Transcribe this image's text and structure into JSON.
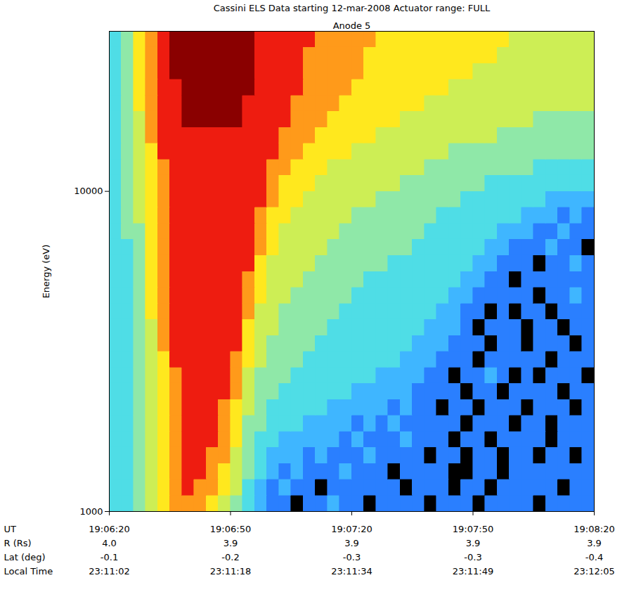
{
  "chart_data": {
    "type": "heatmap",
    "title": "Cassini ELS Data starting 12-mar-2008 Actuator range: FULL",
    "subtitle": "Anode 5",
    "x_label": "UT",
    "y_label": "Energy (eV)",
    "log": "y",
    "xlim": [
      "19:06:20",
      "19:08:20"
    ],
    "xticks": [
      "19:06:20",
      "19:06:50",
      "19:07:20",
      "19:07:50",
      "19:08:20"
    ],
    "ylim": [
      1000,
      31623
    ],
    "yticks": [
      1000,
      10000
    ],
    "ephemeris": [
      {
        "label": "R (Rs)",
        "values": [
          {
            "value": 4.0,
            "label": "4.0"
          },
          3.9,
          3.9,
          3.9,
          3.9
        ]
      },
      {
        "label": "Lat (deg)",
        "values": [
          -0.1,
          -0.2,
          -0.3,
          -0.3,
          -0.4
        ]
      },
      {
        "label": "Local Time",
        "values": [
          "23:11:02",
          "23:11:18",
          "23:11:34",
          "23:11:49",
          "23:12:05"
        ]
      }
    ],
    "x_edges": [
      "19:06:20",
      "19:06:23",
      "19:06:26",
      "19:06:29",
      "19:06:32",
      "19:06:35",
      "19:06:38",
      "19:06:41",
      "19:06:44",
      "19:06:47",
      "19:06:50",
      "19:06:53",
      "19:06:56",
      "19:06:59",
      "19:07:02",
      "19:07:05",
      "19:07:08",
      "19:07:11",
      "19:07:14",
      "19:07:17",
      "19:07:20",
      "19:07:23",
      "19:07:26",
      "19:07:29",
      "19:07:32",
      "19:07:35",
      "19:07:38",
      "19:07:41",
      "19:07:44",
      "19:07:47",
      "19:07:50",
      "19:07:53",
      "19:07:56",
      "19:07:59",
      "19:08:02",
      "19:08:05",
      "19:08:08",
      "19:08:11",
      "19:08:14",
      "19:08:17",
      "19:08:20"
    ],
    "y_edges": [
      1000,
      1122,
      1259,
      1413,
      1585,
      1778,
      1995,
      2239,
      2512,
      2818,
      3162,
      3548,
      3981,
      4467,
      5012,
      5623,
      6310,
      7079,
      7943,
      8913,
      10000,
      11220,
      12589,
      14125,
      15849,
      17783,
      19953,
      22387,
      25119,
      28184,
      31623
    ],
    "z_range": [
      0,
      9
    ],
    "z": [
      [
        3,
        3,
        4,
        5,
        6,
        7,
        7,
        7,
        6,
        5,
        4,
        3,
        2,
        1,
        1,
        0,
        1,
        1,
        2,
        1,
        1,
        0,
        1,
        1,
        1,
        1,
        0,
        1,
        1,
        1,
        0,
        1,
        1,
        1,
        1,
        0,
        1,
        1,
        1,
        1
      ],
      [
        3,
        3,
        4,
        5,
        6,
        7,
        8,
        7,
        7,
        6,
        5,
        3,
        2,
        1,
        2,
        1,
        1,
        0,
        1,
        1,
        1,
        1,
        1,
        1,
        0,
        1,
        1,
        1,
        0,
        1,
        1,
        0,
        1,
        1,
        1,
        1,
        1,
        0,
        1,
        1
      ],
      [
        3,
        3,
        4,
        5,
        6,
        7,
        8,
        8,
        7,
        6,
        5,
        4,
        3,
        2,
        1,
        2,
        1,
        1,
        1,
        2,
        1,
        1,
        1,
        0,
        1,
        1,
        1,
        1,
        0,
        0,
        1,
        1,
        0,
        1,
        1,
        1,
        1,
        1,
        1,
        1
      ],
      [
        3,
        3,
        4,
        5,
        6,
        7,
        8,
        8,
        7,
        7,
        5,
        4,
        3,
        2,
        2,
        2,
        1,
        2,
        1,
        1,
        1,
        2,
        1,
        1,
        1,
        1,
        0,
        1,
        1,
        0,
        1,
        1,
        0,
        1,
        1,
        0,
        1,
        1,
        0,
        1
      ],
      [
        3,
        3,
        4,
        5,
        6,
        7,
        8,
        8,
        8,
        7,
        6,
        4,
        3,
        3,
        2,
        2,
        2,
        2,
        2,
        1,
        2,
        1,
        1,
        1,
        2,
        1,
        1,
        1,
        0,
        1,
        1,
        0,
        1,
        1,
        1,
        1,
        0,
        1,
        1,
        1
      ],
      [
        3,
        3,
        4,
        5,
        6,
        7,
        8,
        8,
        8,
        7,
        6,
        4,
        4,
        3,
        3,
        3,
        2,
        2,
        2,
        2,
        1,
        2,
        1,
        2,
        1,
        1,
        1,
        1,
        1,
        0,
        1,
        1,
        1,
        0,
        1,
        1,
        0,
        1,
        1,
        1
      ],
      [
        3,
        3,
        4,
        5,
        6,
        7,
        8,
        8,
        8,
        7,
        6,
        5,
        4,
        3,
        3,
        3,
        3,
        3,
        2,
        2,
        2,
        2,
        2,
        1,
        2,
        1,
        1,
        0,
        1,
        1,
        0,
        1,
        1,
        1,
        0,
        1,
        1,
        1,
        0,
        1
      ],
      [
        3,
        3,
        4,
        5,
        6,
        7,
        8,
        8,
        8,
        8,
        7,
        5,
        4,
        4,
        3,
        3,
        3,
        3,
        3,
        3,
        2,
        2,
        2,
        2,
        2,
        1,
        1,
        1,
        1,
        0,
        1,
        1,
        0,
        1,
        1,
        1,
        1,
        0,
        1,
        1
      ],
      [
        3,
        3,
        4,
        5,
        6,
        7,
        8,
        8,
        8,
        8,
        7,
        5,
        4,
        4,
        4,
        3,
        3,
        3,
        3,
        3,
        3,
        3,
        2,
        2,
        2,
        2,
        1,
        1,
        0,
        1,
        1,
        2,
        1,
        0,
        1,
        0,
        1,
        1,
        1,
        0
      ],
      [
        3,
        3,
        4,
        5,
        6,
        8,
        8,
        8,
        8,
        8,
        7,
        6,
        5,
        4,
        4,
        4,
        3,
        3,
        3,
        3,
        3,
        3,
        3,
        3,
        2,
        2,
        2,
        1,
        1,
        1,
        0,
        1,
        1,
        1,
        1,
        1,
        0,
        1,
        1,
        1
      ],
      [
        3,
        3,
        4,
        5,
        7,
        8,
        8,
        8,
        8,
        8,
        8,
        6,
        5,
        4,
        4,
        4,
        4,
        3,
        3,
        3,
        3,
        3,
        3,
        3,
        3,
        2,
        2,
        2,
        1,
        1,
        1,
        0,
        1,
        1,
        0,
        1,
        1,
        1,
        0,
        1
      ],
      [
        3,
        3,
        4,
        5,
        7,
        8,
        8,
        8,
        8,
        8,
        8,
        6,
        5,
        5,
        4,
        4,
        4,
        4,
        3,
        3,
        3,
        3,
        3,
        3,
        3,
        3,
        2,
        2,
        2,
        1,
        0,
        1,
        1,
        1,
        0,
        1,
        1,
        0,
        1,
        1
      ],
      [
        3,
        3,
        4,
        6,
        7,
        8,
        8,
        8,
        8,
        8,
        8,
        7,
        5,
        5,
        4,
        4,
        4,
        4,
        4,
        3,
        3,
        3,
        3,
        3,
        3,
        3,
        3,
        2,
        2,
        1,
        1,
        0,
        1,
        0,
        1,
        1,
        0,
        1,
        1,
        1
      ],
      [
        3,
        3,
        4,
        6,
        7,
        8,
        8,
        8,
        8,
        8,
        8,
        7,
        6,
        5,
        5,
        4,
        4,
        4,
        4,
        4,
        3,
        3,
        3,
        3,
        3,
        3,
        3,
        3,
        2,
        2,
        1,
        1,
        1,
        1,
        1,
        0,
        1,
        1,
        2,
        1
      ],
      [
        3,
        3,
        4,
        6,
        7,
        8,
        8,
        8,
        8,
        8,
        8,
        7,
        6,
        5,
        5,
        5,
        4,
        4,
        4,
        4,
        4,
        3,
        3,
        3,
        3,
        3,
        3,
        3,
        3,
        2,
        2,
        1,
        1,
        0,
        1,
        1,
        1,
        1,
        1,
        1
      ],
      [
        3,
        3,
        4,
        6,
        7,
        8,
        8,
        8,
        8,
        8,
        8,
        8,
        6,
        5,
        5,
        5,
        5,
        4,
        4,
        4,
        4,
        4,
        4,
        3,
        3,
        3,
        3,
        3,
        3,
        3,
        2,
        2,
        1,
        1,
        1,
        0,
        1,
        1,
        2,
        1
      ],
      [
        3,
        3,
        4,
        6,
        7,
        8,
        8,
        8,
        8,
        8,
        8,
        8,
        7,
        6,
        5,
        5,
        5,
        5,
        4,
        4,
        4,
        4,
        4,
        4,
        4,
        3,
        3,
        3,
        3,
        3,
        3,
        2,
        2,
        1,
        1,
        1,
        2,
        1,
        1,
        0
      ],
      [
        3,
        4,
        4,
        6,
        7,
        8,
        8,
        8,
        8,
        8,
        8,
        8,
        7,
        6,
        5,
        5,
        5,
        5,
        5,
        4,
        4,
        4,
        4,
        4,
        4,
        4,
        3,
        3,
        3,
        3,
        3,
        3,
        2,
        2,
        2,
        1,
        1,
        2,
        1,
        1
      ],
      [
        3,
        4,
        5,
        6,
        7,
        8,
        8,
        8,
        8,
        8,
        8,
        8,
        7,
        6,
        6,
        5,
        5,
        5,
        5,
        5,
        4,
        4,
        4,
        4,
        4,
        4,
        4,
        3,
        3,
        3,
        3,
        3,
        3,
        3,
        2,
        2,
        2,
        1,
        2,
        1
      ],
      [
        3,
        4,
        5,
        6,
        7,
        8,
        8,
        8,
        8,
        8,
        8,
        8,
        8,
        7,
        6,
        6,
        5,
        5,
        5,
        5,
        5,
        5,
        4,
        4,
        4,
        4,
        4,
        4,
        4,
        3,
        3,
        3,
        3,
        3,
        3,
        3,
        2,
        2,
        2,
        2
      ],
      [
        3,
        4,
        5,
        6,
        7,
        8,
        8,
        8,
        8,
        8,
        8,
        8,
        8,
        7,
        6,
        6,
        6,
        5,
        5,
        5,
        5,
        5,
        5,
        5,
        4,
        4,
        4,
        4,
        4,
        4,
        4,
        3,
        3,
        3,
        3,
        3,
        3,
        3,
        3,
        3
      ],
      [
        3,
        4,
        5,
        6,
        7,
        8,
        8,
        8,
        8,
        8,
        8,
        8,
        8,
        7,
        7,
        6,
        6,
        6,
        5,
        5,
        5,
        5,
        5,
        5,
        5,
        5,
        4,
        4,
        4,
        4,
        4,
        4,
        4,
        4,
        4,
        3,
        3,
        3,
        3,
        3
      ],
      [
        3,
        4,
        5,
        6,
        8,
        8,
        8,
        8,
        8,
        8,
        8,
        8,
        8,
        8,
        7,
        7,
        6,
        6,
        6,
        6,
        5,
        5,
        5,
        5,
        5,
        5,
        5,
        5,
        4,
        4,
        4,
        4,
        4,
        4,
        4,
        4,
        4,
        4,
        4,
        4
      ],
      [
        3,
        4,
        5,
        7,
        8,
        8,
        8,
        8,
        8,
        8,
        8,
        8,
        8,
        8,
        7,
        7,
        7,
        6,
        6,
        6,
        6,
        6,
        5,
        5,
        5,
        5,
        5,
        5,
        5,
        5,
        5,
        5,
        4,
        4,
        4,
        4,
        4,
        4,
        4,
        4
      ],
      [
        3,
        4,
        5,
        7,
        8,
        8,
        9,
        9,
        9,
        9,
        9,
        8,
        8,
        8,
        8,
        7,
        7,
        7,
        6,
        6,
        6,
        6,
        6,
        6,
        5,
        5,
        5,
        5,
        5,
        5,
        5,
        5,
        5,
        5,
        5,
        4,
        4,
        4,
        4,
        4
      ],
      [
        3,
        4,
        6,
        7,
        8,
        8,
        9,
        9,
        9,
        9,
        9,
        8,
        8,
        8,
        8,
        7,
        7,
        7,
        7,
        6,
        6,
        6,
        6,
        6,
        6,
        6,
        5,
        5,
        5,
        5,
        5,
        5,
        5,
        5,
        5,
        5,
        5,
        5,
        5,
        5
      ],
      [
        3,
        4,
        6,
        7,
        8,
        8,
        9,
        9,
        9,
        9,
        9,
        9,
        8,
        8,
        8,
        8,
        7,
        7,
        7,
        7,
        6,
        6,
        6,
        6,
        6,
        6,
        6,
        6,
        5,
        5,
        5,
        5,
        5,
        5,
        5,
        5,
        5,
        5,
        5,
        5
      ],
      [
        3,
        4,
        6,
        7,
        8,
        9,
        9,
        9,
        9,
        9,
        9,
        9,
        8,
        8,
        8,
        8,
        7,
        7,
        7,
        7,
        7,
        6,
        6,
        6,
        6,
        6,
        6,
        6,
        6,
        6,
        5,
        5,
        5,
        5,
        5,
        5,
        5,
        5,
        5,
        5
      ],
      [
        3,
        4,
        6,
        7,
        8,
        9,
        9,
        9,
        9,
        9,
        9,
        9,
        8,
        8,
        8,
        8,
        7,
        7,
        7,
        7,
        7,
        6,
        6,
        6,
        6,
        6,
        6,
        6,
        6,
        6,
        6,
        6,
        5,
        5,
        5,
        5,
        5,
        5,
        5,
        5
      ],
      [
        3,
        4,
        6,
        7,
        8,
        9,
        9,
        9,
        9,
        9,
        9,
        9,
        8,
        8,
        8,
        8,
        8,
        7,
        7,
        7,
        7,
        7,
        6,
        6,
        6,
        6,
        6,
        6,
        6,
        6,
        6,
        6,
        6,
        5,
        5,
        5,
        5,
        5,
        5,
        5
      ]
    ]
  }
}
